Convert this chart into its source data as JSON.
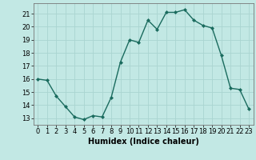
{
  "x": [
    0,
    1,
    2,
    3,
    4,
    5,
    6,
    7,
    8,
    9,
    10,
    11,
    12,
    13,
    14,
    15,
    16,
    17,
    18,
    19,
    20,
    21,
    22,
    23
  ],
  "y": [
    16.0,
    15.9,
    14.7,
    13.9,
    13.1,
    12.9,
    13.2,
    13.1,
    14.6,
    17.3,
    19.0,
    18.8,
    20.5,
    19.8,
    21.1,
    21.1,
    21.3,
    20.5,
    20.1,
    19.9,
    17.8,
    15.3,
    15.2,
    13.7
  ],
  "line_color": "#1a6b5e",
  "marker": "D",
  "marker_size": 2,
  "bg_color": "#c2e8e4",
  "grid_color": "#aad4d0",
  "xlabel": "Humidex (Indice chaleur)",
  "xlim": [
    -0.5,
    23.5
  ],
  "ylim": [
    12.5,
    21.8
  ],
  "yticks": [
    13,
    14,
    15,
    16,
    17,
    18,
    19,
    20,
    21
  ],
  "xticks": [
    0,
    1,
    2,
    3,
    4,
    5,
    6,
    7,
    8,
    9,
    10,
    11,
    12,
    13,
    14,
    15,
    16,
    17,
    18,
    19,
    20,
    21,
    22,
    23
  ],
  "xlabel_fontsize": 7,
  "tick_fontsize": 6,
  "line_width": 1.0
}
